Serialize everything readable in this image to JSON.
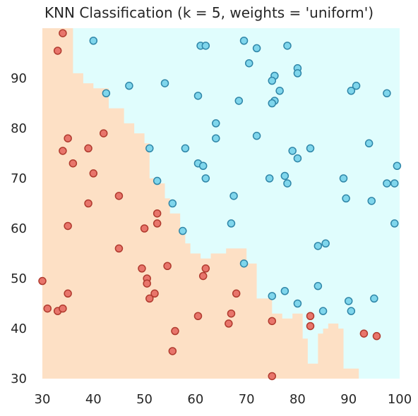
{
  "chart_data": {
    "type": "scatter",
    "title": "KNN Classification (k = 5, weights = 'uniform')",
    "xlabel": "",
    "ylabel": "",
    "xlim": [
      30,
      100
    ],
    "ylim": [
      30,
      100
    ],
    "x_ticks": [
      "30",
      "40",
      "50",
      "60",
      "70",
      "80",
      "90",
      "100"
    ],
    "y_ticks": [
      "30",
      "40",
      "50",
      "60",
      "70",
      "80",
      "90"
    ],
    "grid": false,
    "colors": {
      "region_red": "#fde0c5",
      "region_blue": "#e0fdfd",
      "point_red": "#e8756b",
      "point_blue": "#7fd6ec"
    },
    "decision_boundary": [
      [
        30,
        100
      ],
      [
        36,
        100
      ],
      [
        36,
        91
      ],
      [
        38,
        91
      ],
      [
        38,
        89
      ],
      [
        40,
        89
      ],
      [
        40,
        88
      ],
      [
        43,
        88
      ],
      [
        43,
        84
      ],
      [
        46,
        84
      ],
      [
        46,
        81
      ],
      [
        48,
        81
      ],
      [
        48,
        79
      ],
      [
        50,
        79
      ],
      [
        50,
        77
      ],
      [
        51,
        77
      ],
      [
        51,
        70
      ],
      [
        52,
        70
      ],
      [
        52,
        69
      ],
      [
        54,
        69
      ],
      [
        54,
        66
      ],
      [
        55,
        66
      ],
      [
        55,
        63
      ],
      [
        57,
        63
      ],
      [
        57,
        60
      ],
      [
        58,
        60
      ],
      [
        58,
        57
      ],
      [
        59,
        57
      ],
      [
        59,
        55
      ],
      [
        61,
        55
      ],
      [
        61,
        54
      ],
      [
        63,
        54
      ],
      [
        63,
        55
      ],
      [
        66,
        55
      ],
      [
        66,
        56
      ],
      [
        70,
        56
      ],
      [
        70,
        53
      ],
      [
        72,
        53
      ],
      [
        72,
        46
      ],
      [
        75,
        46
      ],
      [
        75,
        43
      ],
      [
        77,
        43
      ],
      [
        77,
        42
      ],
      [
        79,
        42
      ],
      [
        79,
        43
      ],
      [
        81,
        43
      ],
      [
        81,
        38
      ],
      [
        82,
        38
      ],
      [
        82,
        33
      ],
      [
        84,
        33
      ],
      [
        84,
        39
      ],
      [
        85,
        39
      ],
      [
        85,
        40
      ],
      [
        86,
        40
      ],
      [
        86,
        41
      ],
      [
        88,
        41
      ],
      [
        88,
        40
      ],
      [
        89,
        40
      ],
      [
        89,
        32
      ],
      [
        92,
        32
      ],
      [
        92,
        30
      ],
      [
        30,
        30
      ]
    ],
    "series": [
      {
        "class": "red",
        "points": [
          [
            34,
            99
          ],
          [
            33,
            95.5
          ],
          [
            42,
            79
          ],
          [
            35,
            78
          ],
          [
            34,
            75.5
          ],
          [
            36,
            73
          ],
          [
            39,
            76
          ],
          [
            40,
            71
          ],
          [
            45,
            66.5
          ],
          [
            39,
            65
          ],
          [
            35,
            60.5
          ],
          [
            45,
            56
          ],
          [
            50,
            60
          ],
          [
            52.5,
            63
          ],
          [
            52.5,
            61
          ],
          [
            30,
            49.5
          ],
          [
            31,
            44
          ],
          [
            33,
            43.5
          ],
          [
            34,
            44
          ],
          [
            35,
            47
          ],
          [
            49.5,
            52
          ],
          [
            50.5,
            50
          ],
          [
            50.5,
            49
          ],
          [
            52,
            47
          ],
          [
            51,
            46
          ],
          [
            54.5,
            52.5
          ],
          [
            62,
            52
          ],
          [
            61.5,
            50.5
          ],
          [
            60.5,
            42.5
          ],
          [
            56,
            39.5
          ],
          [
            55.5,
            35.5
          ],
          [
            68,
            47
          ],
          [
            67,
            43
          ],
          [
            66.5,
            41
          ],
          [
            75,
            41.5
          ],
          [
            75,
            30.5
          ],
          [
            82.5,
            42.5
          ],
          [
            82.5,
            40.5
          ],
          [
            93,
            39
          ],
          [
            95.5,
            38.5
          ]
        ]
      },
      {
        "class": "blue",
        "points": [
          [
            40,
            97.5
          ],
          [
            61,
            96.5
          ],
          [
            62,
            96.5
          ],
          [
            69.5,
            97.5
          ],
          [
            72,
            96
          ],
          [
            78,
            96.5
          ],
          [
            70.5,
            93
          ],
          [
            75.5,
            90.5
          ],
          [
            75,
            89.5
          ],
          [
            80,
            92
          ],
          [
            80,
            91
          ],
          [
            91.5,
            88.5
          ],
          [
            90.5,
            87.5
          ],
          [
            97.5,
            87
          ],
          [
            42.5,
            87
          ],
          [
            47,
            88.5
          ],
          [
            54,
            89
          ],
          [
            60.5,
            86.5
          ],
          [
            68.5,
            85.5
          ],
          [
            75.5,
            85.5
          ],
          [
            75,
            85
          ],
          [
            76.5,
            87.5
          ],
          [
            64,
            81
          ],
          [
            64,
            78
          ],
          [
            72,
            78.5
          ],
          [
            51,
            76
          ],
          [
            58,
            76
          ],
          [
            60.5,
            73
          ],
          [
            61.5,
            72.5
          ],
          [
            62,
            70
          ],
          [
            79,
            75.5
          ],
          [
            80,
            74
          ],
          [
            82.5,
            76
          ],
          [
            94,
            77
          ],
          [
            99.5,
            72.5
          ],
          [
            52.5,
            69.5
          ],
          [
            67.5,
            66.5
          ],
          [
            74.5,
            70
          ],
          [
            77.5,
            70.5
          ],
          [
            78,
            69
          ],
          [
            89,
            70
          ],
          [
            89.5,
            66
          ],
          [
            94.5,
            65.5
          ],
          [
            97.5,
            69
          ],
          [
            99,
            69
          ],
          [
            99,
            61
          ],
          [
            55.5,
            65
          ],
          [
            57.5,
            59.5
          ],
          [
            67,
            61
          ],
          [
            84,
            56.5
          ],
          [
            85.5,
            57
          ],
          [
            69.5,
            53
          ],
          [
            75,
            46.5
          ],
          [
            77.5,
            47.5
          ],
          [
            80,
            45
          ],
          [
            84,
            48.5
          ],
          [
            85,
            43.5
          ],
          [
            90,
            45.5
          ],
          [
            90.5,
            43.5
          ],
          [
            95,
            46
          ]
        ]
      }
    ]
  }
}
